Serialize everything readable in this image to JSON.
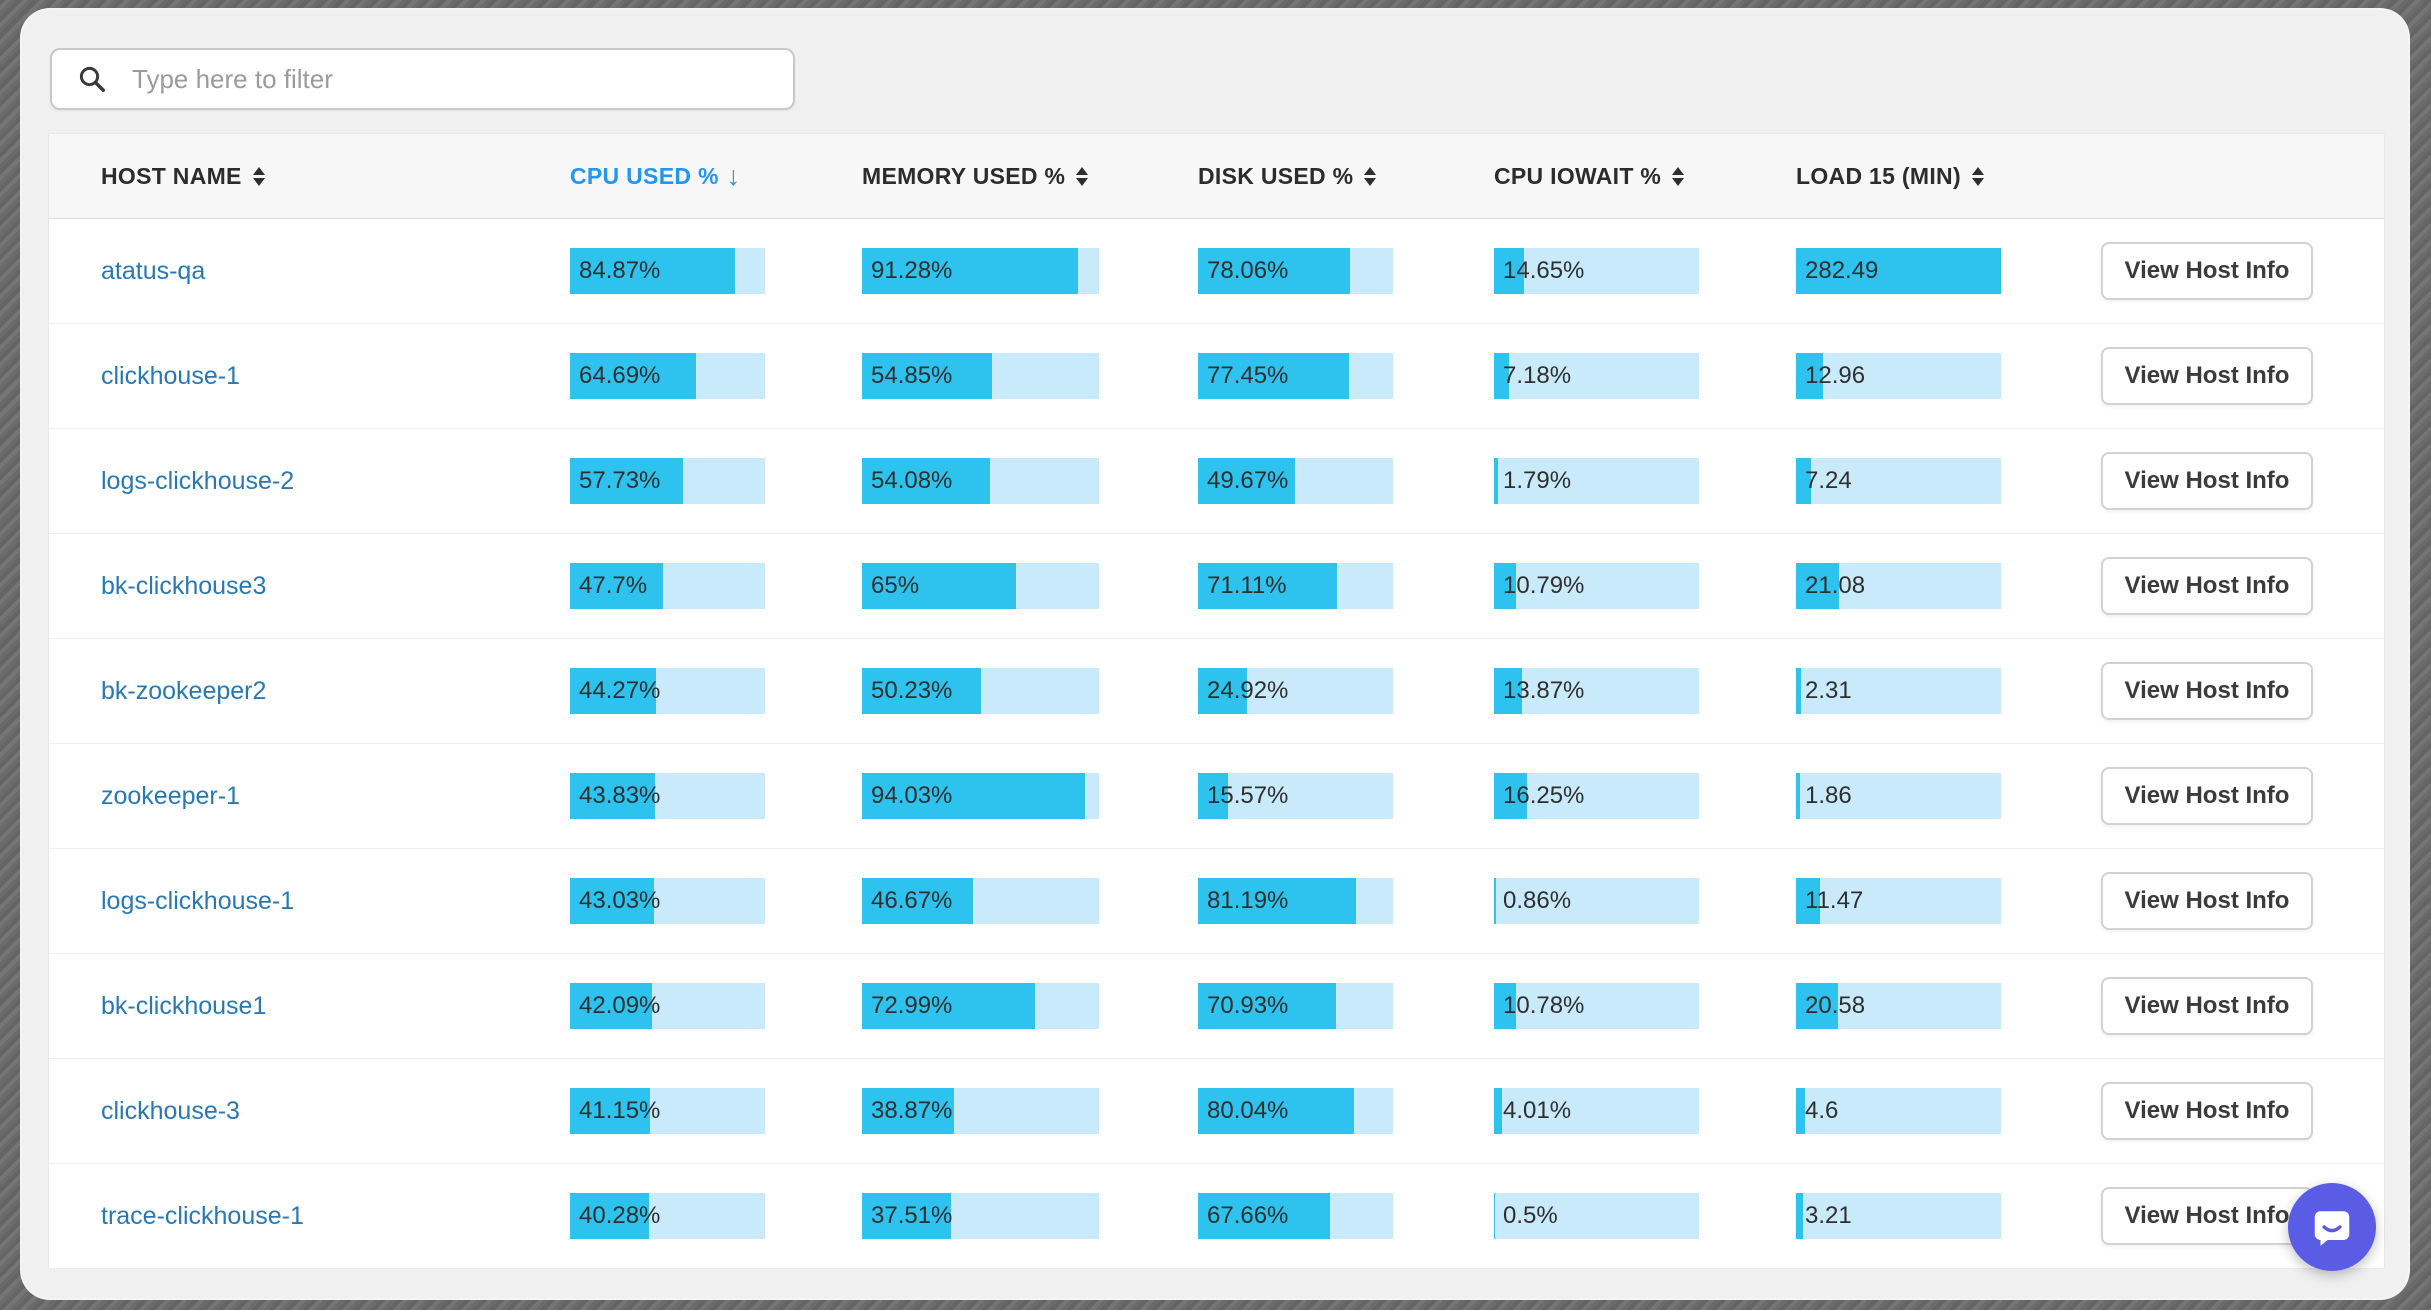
{
  "filter": {
    "placeholder": "Type here to filter"
  },
  "table": {
    "columns": [
      {
        "key": "host",
        "label": "HOST NAME",
        "sortable": true,
        "sorted": false
      },
      {
        "key": "cpu",
        "label": "CPU USED %",
        "sortable": true,
        "sorted": true,
        "sort_dir": "desc",
        "sort_indicator": "↓"
      },
      {
        "key": "memory",
        "label": "MEMORY USED %",
        "sortable": true,
        "sorted": false
      },
      {
        "key": "disk",
        "label": "DISK USED %",
        "sortable": true,
        "sorted": false
      },
      {
        "key": "iowait",
        "label": "CPU IOWAIT %",
        "sortable": true,
        "sorted": false
      },
      {
        "key": "load15",
        "label": "LOAD 15 (MIN)",
        "sortable": true,
        "sorted": false
      }
    ],
    "action_label": "View Host Info",
    "rows": [
      {
        "host": "atatus-qa",
        "cpu": "84.87%",
        "memory": "91.28%",
        "disk": "78.06%",
        "iowait": "14.65%",
        "load15": "282.49"
      },
      {
        "host": "clickhouse-1",
        "cpu": "64.69%",
        "memory": "54.85%",
        "disk": "77.45%",
        "iowait": "7.18%",
        "load15": "12.96"
      },
      {
        "host": "logs-clickhouse-2",
        "cpu": "57.73%",
        "memory": "54.08%",
        "disk": "49.67%",
        "iowait": "1.79%",
        "load15": "7.24"
      },
      {
        "host": "bk-clickhouse3",
        "cpu": "47.7%",
        "memory": "65%",
        "disk": "71.11%",
        "iowait": "10.79%",
        "load15": "21.08"
      },
      {
        "host": "bk-zookeeper2",
        "cpu": "44.27%",
        "memory": "50.23%",
        "disk": "24.92%",
        "iowait": "13.87%",
        "load15": "2.31"
      },
      {
        "host": "zookeeper-1",
        "cpu": "43.83%",
        "memory": "94.03%",
        "disk": "15.57%",
        "iowait": "16.25%",
        "load15": "1.86"
      },
      {
        "host": "logs-clickhouse-1",
        "cpu": "43.03%",
        "memory": "46.67%",
        "disk": "81.19%",
        "iowait": "0.86%",
        "load15": "11.47"
      },
      {
        "host": "bk-clickhouse1",
        "cpu": "42.09%",
        "memory": "72.99%",
        "disk": "70.93%",
        "iowait": "10.78%",
        "load15": "20.58"
      },
      {
        "host": "clickhouse-3",
        "cpu": "41.15%",
        "memory": "38.87%",
        "disk": "80.04%",
        "iowait": "4.01%",
        "load15": "4.6"
      },
      {
        "host": "trace-clickhouse-1",
        "cpu": "40.28%",
        "memory": "37.51%",
        "disk": "67.66%",
        "iowait": "0.5%",
        "load15": "3.21"
      }
    ]
  },
  "colors": {
    "bar_fill": "#2ec2ee",
    "bar_track": "#c9eafa",
    "sorted_header": "#2196f3",
    "host_link": "#2878b5",
    "chat_widget": "#5a5ce5"
  },
  "chat_widget": {
    "icon": "chat-bubble"
  }
}
